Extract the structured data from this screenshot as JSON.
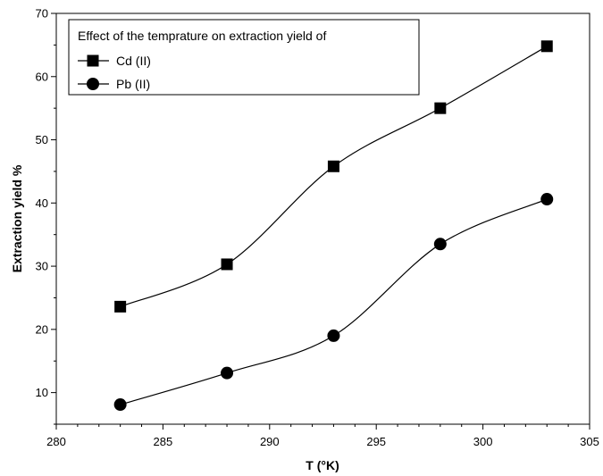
{
  "chart_data": {
    "type": "line",
    "title": "",
    "xlabel": "T (°K)",
    "ylabel": "Extraction yield %",
    "xlim": [
      280,
      305
    ],
    "ylim": [
      5,
      70
    ],
    "x_ticks": [
      280,
      285,
      290,
      295,
      300,
      305
    ],
    "y_ticks": [
      10,
      20,
      30,
      40,
      50,
      60,
      70
    ],
    "x": [
      283,
      288,
      293,
      298,
      303
    ],
    "grid": false,
    "legend": {
      "title": "Effect of the temprature on extraction yield of",
      "placement": "top-left"
    },
    "series": [
      {
        "name": "Cd (II)",
        "marker": "square",
        "values": [
          23.6,
          30.3,
          45.8,
          55.0,
          64.8
        ]
      },
      {
        "name": "Pb (II)",
        "marker": "circle",
        "values": [
          8.1,
          13.1,
          19.0,
          33.5,
          40.6
        ]
      }
    ]
  }
}
